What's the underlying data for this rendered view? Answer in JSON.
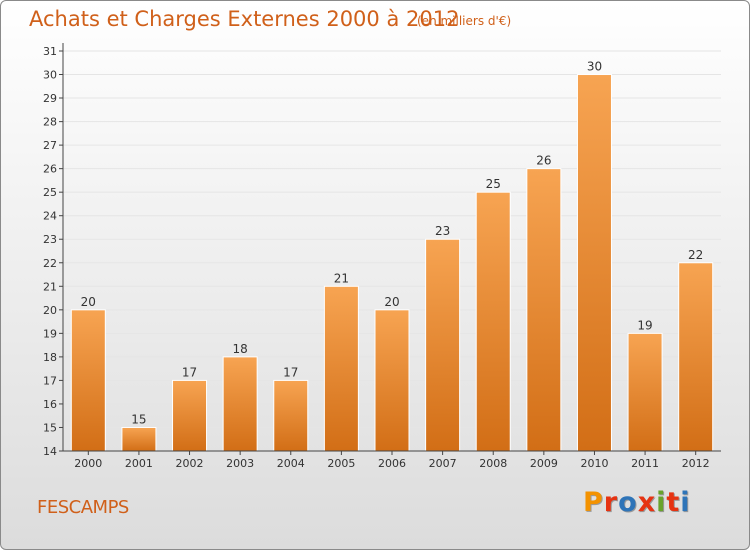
{
  "title": "Achats et Charges Externes 2000 à 2012",
  "unit_label": "(en milliers d'€)",
  "place_name": "FESCAMPS",
  "logo": {
    "text": "Proxiti",
    "colors": [
      "#f39200",
      "#e63312",
      "#2e74b8",
      "#e63312",
      "#68a32c",
      "#e63312",
      "#2e74b8"
    ]
  },
  "colors": {
    "bar_top": "#f7a452",
    "bar_bottom": "#d26e16",
    "axis": "#444444",
    "grid": "#e5e5e5",
    "text": "#333333",
    "title": "#d0601a"
  },
  "chart_data": {
    "type": "bar",
    "title": "Achats et Charges Externes 2000 à 2012",
    "subtitle": "(en milliers d'€)",
    "xlabel": "",
    "ylabel": "",
    "categories": [
      "2000",
      "2001",
      "2002",
      "2003",
      "2004",
      "2005",
      "2006",
      "2007",
      "2008",
      "2009",
      "2010",
      "2011",
      "2012"
    ],
    "values": [
      20,
      15,
      17,
      18,
      17,
      21,
      20,
      23,
      25,
      26,
      30,
      19,
      22
    ],
    "ylim": [
      14,
      31
    ],
    "yticks": [
      14,
      15,
      16,
      17,
      18,
      19,
      20,
      21,
      22,
      23,
      24,
      25,
      26,
      27,
      28,
      29,
      30,
      31
    ],
    "grid": true,
    "data_labels": true
  }
}
